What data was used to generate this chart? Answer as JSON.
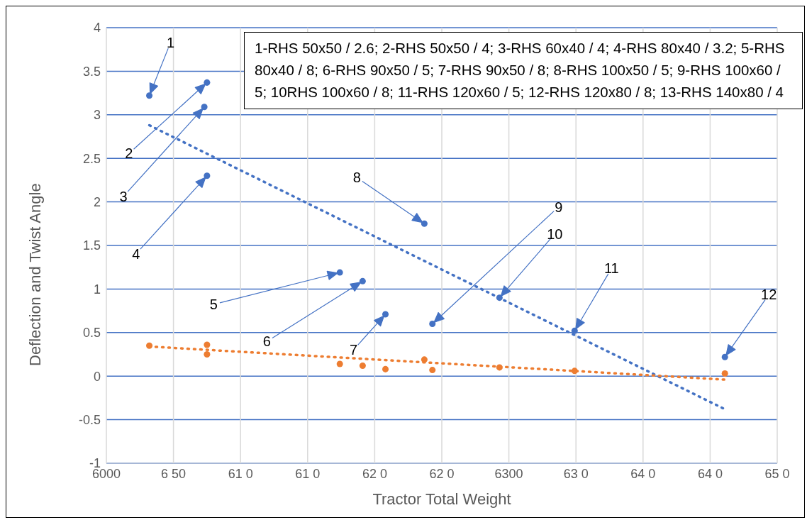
{
  "chart_data": {
    "type": "scatter",
    "xlabel": "Tractor Total Weight",
    "ylabel": "Deflection and Twist Angle",
    "xlim": [
      6000,
      6500
    ],
    "xticks": [
      6000,
      {
        "value": 6050,
        "label": "6 50"
      },
      {
        "value": 6100,
        "label": "61 0"
      },
      {
        "value": 6150,
        "label": "61 0"
      },
      {
        "value": 6200,
        "label": "62 0"
      },
      {
        "value": 6250,
        "label": "62 0"
      },
      6300,
      {
        "value": 6350,
        "label": "63 0"
      },
      {
        "value": 6400,
        "label": "64 0"
      },
      {
        "value": 6450,
        "label": "64 0"
      },
      {
        "value": 6500,
        "label": "65 0"
      }
    ],
    "ylim": [
      -1,
      4
    ],
    "yticks": [
      -1,
      -0.5,
      0,
      0.5,
      1,
      1.5,
      2,
      2.5,
      3,
      3.5,
      4
    ],
    "grid": true,
    "marker": "circle",
    "series": [
      {
        "color": "#4472c4",
        "x": [
          6032,
          6075,
          6073,
          6075,
          6174,
          6191,
          6208,
          6237,
          6243,
          6293,
          6349,
          6461
        ],
        "values": [
          3.22,
          3.37,
          3.09,
          2.3,
          1.19,
          1.09,
          0.71,
          1.75,
          0.6,
          0.9,
          0.52,
          0.22
        ]
      },
      {
        "color": "#ed7d31",
        "x": [
          6032,
          6075,
          6075,
          6174,
          6191,
          6208,
          6237,
          6243,
          6293,
          6349,
          6461
        ],
        "values": [
          0.35,
          0.36,
          0.25,
          0.14,
          0.12,
          0.08,
          0.19,
          0.07,
          0.1,
          0.06,
          0.03
        ]
      },
      {
        "type": "line",
        "marker": "none",
        "line_style": "dotted",
        "color": "#4472c4",
        "x": [
          6032,
          6461
        ],
        "values": [
          2.88,
          -0.38
        ]
      },
      {
        "type": "line",
        "marker": "none",
        "line_style": "dotted",
        "color": "#ed7d31",
        "x": [
          6032,
          6461
        ],
        "values": [
          0.34,
          -0.04
        ]
      }
    ],
    "annotations": [
      "1-RHS 50x50 / 2.6; 2-RHS 50x50 / 4; 3-RHS 60x40 / 4; 4-RHS 80x40 / 3.2; 5-RHS 80x40 / 8; 6-RHS 90x50 / 5; 7-RHS 90x50 / 8; 8-RHS 100x50 / 5; 9-RHS 100x60 / 5; 10RHS 100x60 / 8; 11-RHS 120x60 / 5; 12-RHS 120x80 / 8; 13-RHS 140x80 / 4",
      "1",
      "2",
      "3",
      "4",
      "5",
      "6",
      "7",
      "8",
      "9",
      "10",
      "11",
      "12"
    ]
  }
}
